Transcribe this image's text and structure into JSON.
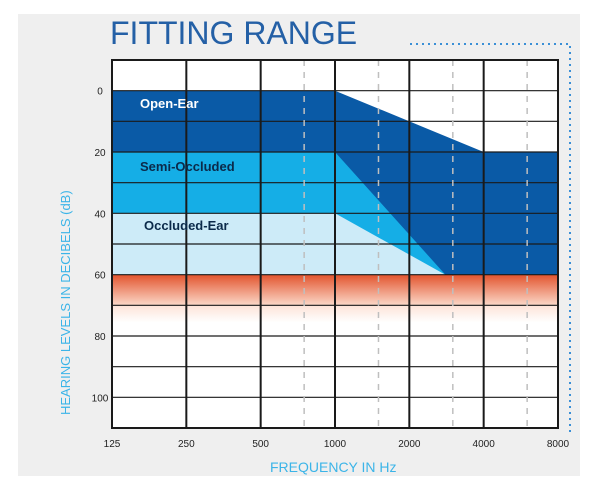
{
  "chart_data": {
    "type": "area",
    "title": "FITTING RANGE",
    "xlabel": "FREQUENCY IN Hz",
    "ylabel": "HEARING LEVELS IN DECIBELS (dB)",
    "x_scale": "log",
    "x_ticks": [
      "125",
      "250",
      "500",
      "1000",
      "2000",
      "4000",
      "8000"
    ],
    "x_tick_values": [
      125,
      250,
      500,
      1000,
      2000,
      4000,
      8000
    ],
    "y_ticks": [
      "0",
      "20",
      "40",
      "60",
      "80",
      "100"
    ],
    "y_tick_values": [
      0,
      20,
      40,
      60,
      80,
      100
    ],
    "ylim": [
      -10,
      110
    ],
    "y_inverted": true,
    "grid": true,
    "series": [
      {
        "name": "Open-Ear",
        "color": "#0a5aa6",
        "upper": [
          {
            "x": 125,
            "y": 0
          },
          {
            "x": 1000,
            "y": 0
          },
          {
            "x": 4000,
            "y": 20
          },
          {
            "x": 8000,
            "y": 20
          }
        ],
        "lower": [
          {
            "x": 125,
            "y": 60
          },
          {
            "x": 8000,
            "y": 60
          }
        ]
      },
      {
        "name": "Semi-Occluded",
        "color": "#15aee6",
        "upper": [
          {
            "x": 125,
            "y": 20
          },
          {
            "x": 1000,
            "y": 20
          }
        ],
        "lower": [
          {
            "x": 125,
            "y": 60
          },
          {
            "x": 2800,
            "y": 60
          }
        ]
      },
      {
        "name": "Occluded-Ear",
        "color": "#cdebf8",
        "upper": [
          {
            "x": 125,
            "y": 40
          },
          {
            "x": 1000,
            "y": 40
          }
        ],
        "lower": [
          {
            "x": 125,
            "y": 60
          },
          {
            "x": 2800,
            "y": 60
          }
        ]
      }
    ],
    "bands": [
      {
        "from": 60,
        "to": 70,
        "color_top": "#e2542e",
        "color_bottom": "#fbd8c8"
      }
    ],
    "colors": {
      "title": "#2460a6",
      "axis_label": "#3bb4e8",
      "grid": "#1a1a1a",
      "frame_bg": "#efefef",
      "dotted_border": "#3a8fd6"
    }
  }
}
